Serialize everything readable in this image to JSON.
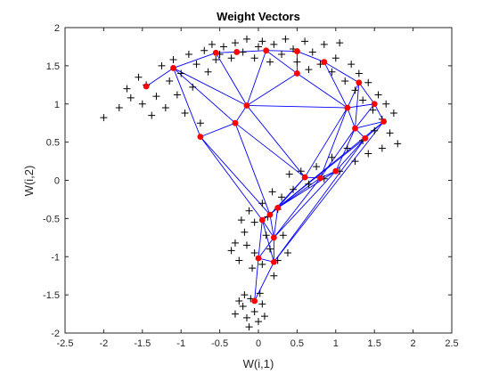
{
  "chart_data": {
    "type": "scatter",
    "title": "Weight Vectors",
    "xlabel": "W(i,1)",
    "ylabel": "W(i,2)",
    "xlim": [
      -2.5,
      2.5
    ],
    "ylim": [
      -2,
      2
    ],
    "xticks": [
      "-2.5",
      "-2",
      "-1.5",
      "-1",
      "-0.5",
      "0",
      "0.5",
      "1",
      "1.5",
      "2",
      "2.5"
    ],
    "yticks": [
      "2",
      "1.5",
      "1",
      "0.5",
      "0",
      "-0.5",
      "-1",
      "-1.5",
      "-2"
    ],
    "grid": false,
    "colors": {
      "input_marker": "#000000",
      "neuron": "#ff0000",
      "edge": "#0000ff",
      "axes": "#262626"
    },
    "input_points": {
      "marker": "+",
      "points": [
        [
          -2.0,
          0.82
        ],
        [
          -1.8,
          0.95
        ],
        [
          -1.7,
          1.2
        ],
        [
          -1.65,
          1.08
        ],
        [
          -1.55,
          1.35
        ],
        [
          -1.5,
          1.0
        ],
        [
          -1.45,
          1.25
        ],
        [
          -1.38,
          0.85
        ],
        [
          -1.32,
          1.1
        ],
        [
          -1.25,
          1.5
        ],
        [
          -1.2,
          0.95
        ],
        [
          -1.15,
          1.3
        ],
        [
          -1.1,
          1.58
        ],
        [
          -1.05,
          1.12
        ],
        [
          -1.0,
          1.4
        ],
        [
          -0.95,
          0.88
        ],
        [
          -0.9,
          1.65
        ],
        [
          -0.85,
          1.22
        ],
        [
          -0.8,
          1.52
        ],
        [
          -0.75,
          0.75
        ],
        [
          -0.7,
          1.7
        ],
        [
          -0.65,
          1.42
        ],
        [
          -0.6,
          1.78
        ],
        [
          -0.55,
          1.58
        ],
        [
          -0.5,
          1.65
        ],
        [
          -0.45,
          1.75
        ],
        [
          -0.35,
          1.6
        ],
        [
          -0.3,
          1.8
        ],
        [
          -0.2,
          1.68
        ],
        [
          -0.15,
          1.85
        ],
        [
          -0.05,
          1.6
        ],
        [
          0.0,
          1.75
        ],
        [
          0.05,
          1.82
        ],
        [
          0.15,
          1.55
        ],
        [
          0.2,
          1.78
        ],
        [
          0.3,
          1.65
        ],
        [
          0.35,
          1.85
        ],
        [
          0.45,
          1.72
        ],
        [
          0.5,
          1.55
        ],
        [
          0.6,
          1.82
        ],
        [
          0.65,
          1.45
        ],
        [
          0.7,
          1.68
        ],
        [
          0.8,
          1.52
        ],
        [
          0.85,
          1.78
        ],
        [
          0.95,
          1.42
        ],
        [
          1.0,
          1.6
        ],
        [
          1.05,
          1.8
        ],
        [
          1.12,
          1.3
        ],
        [
          1.2,
          1.52
        ],
        [
          1.25,
          1.18
        ],
        [
          1.3,
          1.4
        ],
        [
          1.35,
          1.05
        ],
        [
          1.42,
          1.28
        ],
        [
          1.48,
          0.92
        ],
        [
          1.55,
          1.12
        ],
        [
          1.6,
          0.8
        ],
        [
          1.65,
          1.0
        ],
        [
          1.7,
          0.62
        ],
        [
          1.75,
          0.88
        ],
        [
          1.8,
          0.48
        ],
        [
          1.6,
          0.42
        ],
        [
          1.5,
          0.65
        ],
        [
          1.42,
          0.35
        ],
        [
          1.35,
          0.52
        ],
        [
          1.25,
          0.25
        ],
        [
          1.15,
          0.42
        ],
        [
          1.05,
          0.12
        ],
        [
          0.95,
          0.3
        ],
        [
          0.85,
          0.02
        ],
        [
          0.75,
          0.18
        ],
        [
          0.65,
          -0.05
        ],
        [
          0.55,
          0.12
        ],
        [
          0.45,
          -0.12
        ],
        [
          0.4,
          0.08
        ],
        [
          0.3,
          -0.22
        ],
        [
          0.25,
          -0.38
        ],
        [
          0.18,
          -0.15
        ],
        [
          0.12,
          -0.48
        ],
        [
          0.05,
          -0.3
        ],
        [
          -0.05,
          -0.55
        ],
        [
          -0.12,
          -0.4
        ],
        [
          -0.18,
          -0.68
        ],
        [
          -0.22,
          -0.52
        ],
        [
          -0.3,
          -0.82
        ],
        [
          -0.15,
          -0.85
        ],
        [
          -0.05,
          -0.95
        ],
        [
          0.05,
          -1.1
        ],
        [
          0.15,
          -0.9
        ],
        [
          0.25,
          -1.05
        ],
        [
          0.32,
          -0.72
        ],
        [
          0.38,
          -0.95
        ],
        [
          0.1,
          -0.72
        ],
        [
          -0.08,
          -1.15
        ],
        [
          -0.25,
          -1.05
        ],
        [
          -0.35,
          -0.92
        ],
        [
          0.2,
          -1.25
        ],
        [
          -0.1,
          -1.55
        ],
        [
          -0.2,
          -1.65
        ],
        [
          -0.05,
          -1.72
        ],
        [
          0.05,
          -1.62
        ],
        [
          -0.15,
          -1.8
        ],
        [
          -0.25,
          -1.58
        ],
        [
          0.0,
          -1.85
        ],
        [
          -0.12,
          -1.92
        ],
        [
          0.08,
          -1.78
        ],
        [
          -0.3,
          -1.75
        ],
        [
          -0.18,
          -1.5
        ],
        [
          0.02,
          -1.48
        ]
      ]
    },
    "neurons": {
      "marker": "dot",
      "points": [
        [
          -1.45,
          1.23
        ],
        [
          -1.1,
          1.47
        ],
        [
          -0.55,
          1.67
        ],
        [
          -0.28,
          1.68
        ],
        [
          0.1,
          1.7
        ],
        [
          0.5,
          1.69
        ],
        [
          0.85,
          1.55
        ],
        [
          1.3,
          1.28
        ],
        [
          -0.75,
          0.57
        ],
        [
          -0.3,
          0.75
        ],
        [
          -0.15,
          0.98
        ],
        [
          0.5,
          1.4
        ],
        [
          1.15,
          0.95
        ],
        [
          1.5,
          1.0
        ],
        [
          1.25,
          0.68
        ],
        [
          1.62,
          0.77
        ],
        [
          1.38,
          0.55
        ],
        [
          1.0,
          0.12
        ],
        [
          0.8,
          0.03
        ],
        [
          0.6,
          0.04
        ],
        [
          0.25,
          -0.36
        ],
        [
          0.15,
          -0.45
        ],
        [
          0.05,
          -0.52
        ],
        [
          0.2,
          -0.75
        ],
        [
          0.0,
          -1.02
        ],
        [
          0.2,
          -1.07
        ],
        [
          -0.05,
          -1.58
        ]
      ]
    },
    "edges": [
      [
        0,
        1
      ],
      [
        1,
        2
      ],
      [
        2,
        3
      ],
      [
        3,
        4
      ],
      [
        4,
        5
      ],
      [
        5,
        6
      ],
      [
        6,
        7
      ],
      [
        1,
        8
      ],
      [
        1,
        9
      ],
      [
        1,
        10
      ],
      [
        2,
        10
      ],
      [
        4,
        10
      ],
      [
        4,
        11
      ],
      [
        5,
        11
      ],
      [
        10,
        11
      ],
      [
        11,
        12
      ],
      [
        6,
        12
      ],
      [
        7,
        12
      ],
      [
        7,
        13
      ],
      [
        12,
        13
      ],
      [
        12,
        14
      ],
      [
        13,
        14
      ],
      [
        13,
        15
      ],
      [
        14,
        15
      ],
      [
        14,
        16
      ],
      [
        15,
        16
      ],
      [
        7,
        14
      ],
      [
        10,
        12
      ],
      [
        8,
        9
      ],
      [
        9,
        10
      ],
      [
        9,
        19
      ],
      [
        10,
        19
      ],
      [
        12,
        19
      ],
      [
        12,
        18
      ],
      [
        14,
        18
      ],
      [
        16,
        17
      ],
      [
        14,
        17
      ],
      [
        17,
        18
      ],
      [
        18,
        19
      ],
      [
        19,
        20
      ],
      [
        19,
        21
      ],
      [
        18,
        20
      ],
      [
        17,
        20
      ],
      [
        16,
        20
      ],
      [
        15,
        20
      ],
      [
        8,
        21
      ],
      [
        9,
        21
      ],
      [
        8,
        22
      ],
      [
        20,
        21
      ],
      [
        21,
        22
      ],
      [
        20,
        22
      ],
      [
        22,
        23
      ],
      [
        20,
        23
      ],
      [
        21,
        23
      ],
      [
        22,
        24
      ],
      [
        23,
        24
      ],
      [
        23,
        25
      ],
      [
        24,
        25
      ],
      [
        22,
        25
      ],
      [
        24,
        26
      ],
      [
        25,
        26
      ],
      [
        18,
        23
      ],
      [
        17,
        23
      ],
      [
        16,
        25
      ],
      [
        15,
        25
      ]
    ]
  }
}
